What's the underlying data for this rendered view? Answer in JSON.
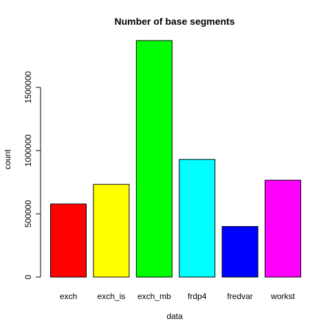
{
  "chart_data": {
    "type": "bar",
    "title": "Number of base segments",
    "xlabel": "data",
    "ylabel": "count",
    "categories": [
      "exch",
      "exch_is",
      "exch_mb",
      "frdp4",
      "fredvar",
      "workst"
    ],
    "values": [
      578000,
      733000,
      1870000,
      930000,
      400000,
      766000
    ],
    "colors": [
      "#ff0000",
      "#ffff00",
      "#00ff00",
      "#00ffff",
      "#0000ff",
      "#ff00ff"
    ],
    "ylim": [
      0,
      1870000
    ],
    "yticks": [
      0,
      500000,
      1000000,
      1500000
    ],
    "ytick_labels": [
      "0",
      "500000",
      "1000000",
      "1500000"
    ],
    "grid": false,
    "legend": "none"
  }
}
